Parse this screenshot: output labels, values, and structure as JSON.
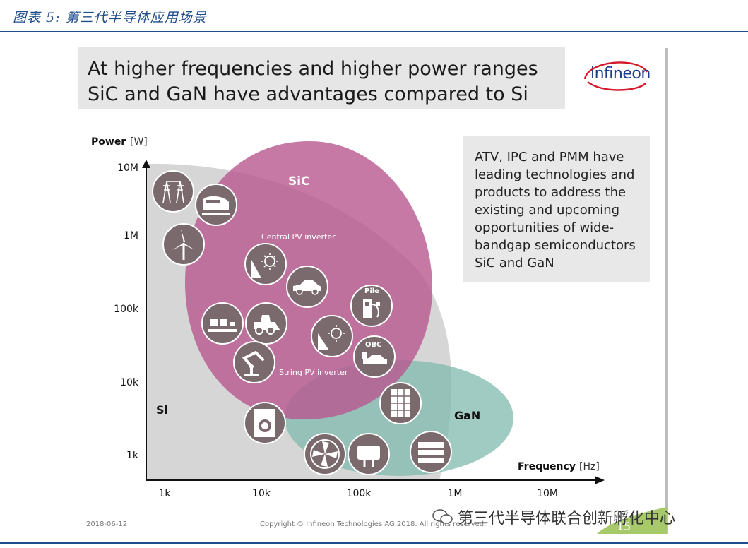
{
  "caption": "图表 5:  第三代半导体应用场景",
  "slide": {
    "title": "At higher frequencies and higher power ranges\nSiC and GaN have advantages compared to Si",
    "logo_text": "infineon",
    "info_text": "ATV, IPC and PMM have\nleading technologies and\nproducts to address the\nexisting and upcoming\nopportunities of wide-\nbandgap semiconductors\nSiC and GaN",
    "footer_date": "2018-06-12",
    "footer_copyright": "Copyright © Infineon Technologies AG 2018. All rights reserved.",
    "page_number": "15"
  },
  "diagram": {
    "y_axis_title": "Power",
    "y_axis_unit": "[W]",
    "x_axis_title": "Frequency",
    "x_axis_unit": "[Hz]",
    "y_ticks": [
      "10M",
      "1M",
      "100k",
      "10k",
      "1k"
    ],
    "x_ticks": [
      "1k",
      "10k",
      "100k",
      "1M",
      "10M"
    ],
    "regions": {
      "si": "Si",
      "sic": "SiC",
      "gan": "GaN"
    },
    "labels": {
      "central_pv": "Central PV inverter",
      "string_pv": "String PV inverter",
      "pile": "Pile",
      "obc": "OBC"
    },
    "colors": {
      "si": "#d6d6d6",
      "sic": "#b8578f",
      "gan": "#7fb9ae",
      "icon_bg": "#7a6a6e"
    }
  },
  "watermark": "第三代半导体联合创新孵化中心"
}
